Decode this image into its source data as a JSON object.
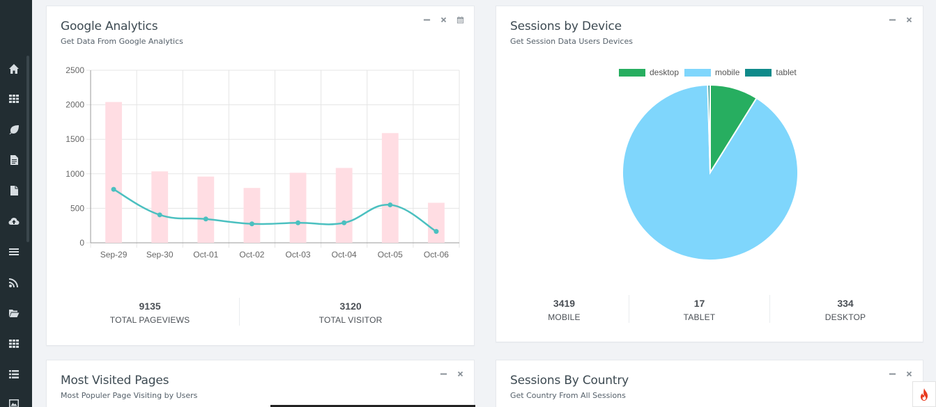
{
  "sidebar": {
    "icons": [
      "home-icon",
      "apps-icon",
      "leaf-icon",
      "file-text-icon",
      "file-icon",
      "cloud-upload-icon",
      "menu-icon",
      "rss-icon",
      "folder-open-icon",
      "grid-icon",
      "list-icon",
      "image-icon"
    ]
  },
  "analytics": {
    "title": "Google Analytics",
    "subtitle": "Get Data From Google Analytics",
    "stats": [
      {
        "value": "9135",
        "label": "TOTAL PAGEVIEWS"
      },
      {
        "value": "3120",
        "label": "TOTAL VISITOR"
      }
    ]
  },
  "device": {
    "title": "Sessions by Device",
    "subtitle": "Get Session Data Users Devices",
    "stats": [
      {
        "value": "3419",
        "label": "MOBILE"
      },
      {
        "value": "17",
        "label": "TABLET"
      },
      {
        "value": "334",
        "label": "DESKTOP"
      }
    ]
  },
  "pages": {
    "title": "Most Visited Pages",
    "subtitle": "Most Populer Page Visiting by Users"
  },
  "country": {
    "title": "Sessions By Country",
    "subtitle": "Get Country From All Sessions"
  },
  "chart_data": [
    {
      "type": "bar",
      "categories": [
        "Sep-29",
        "Sep-30",
        "Oct-01",
        "Oct-02",
        "Oct-03",
        "Oct-04",
        "Oct-05",
        "Oct-06"
      ],
      "series": [
        {
          "kind": "bar",
          "color": "#ffdde3",
          "values": [
            2040,
            1035,
            960,
            795,
            1015,
            1085,
            1590,
            580
          ]
        },
        {
          "kind": "line",
          "color": "#4bc0c0",
          "values": [
            775,
            405,
            345,
            275,
            290,
            290,
            550,
            165
          ]
        }
      ],
      "ylim": [
        0,
        2500
      ],
      "yticks": [
        0,
        500,
        1000,
        1500,
        2000,
        2500
      ],
      "grid": true
    },
    {
      "type": "pie",
      "labels": [
        "desktop",
        "mobile",
        "tablet"
      ],
      "values": [
        334,
        3419,
        17
      ],
      "colors": [
        "#27ae60",
        "#7fd6fc",
        "#0f8a8a"
      ],
      "legend": "top"
    }
  ]
}
